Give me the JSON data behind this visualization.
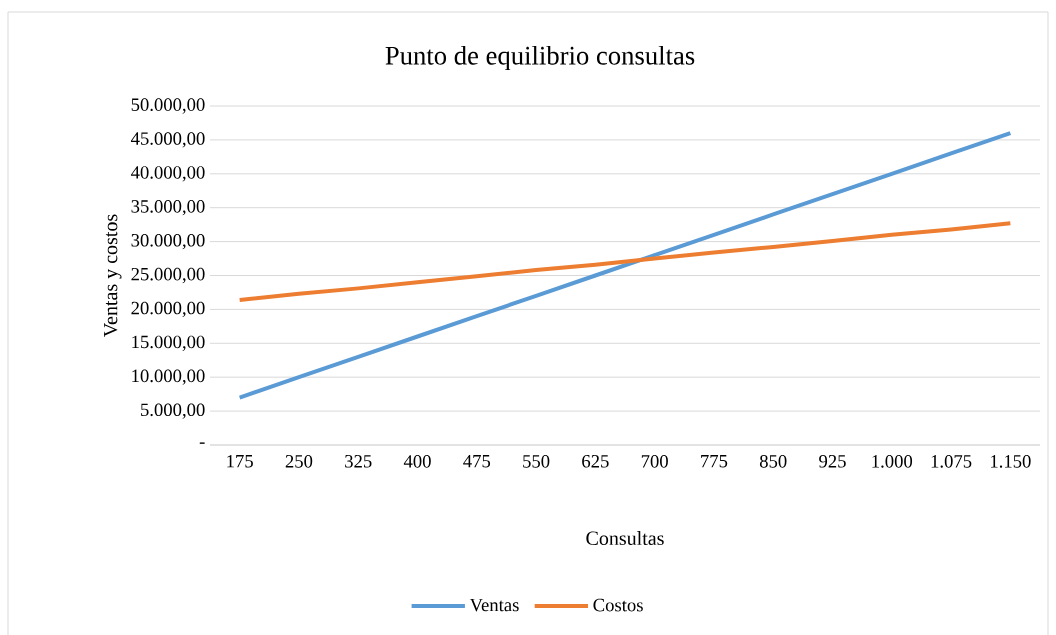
{
  "chart_data": {
    "type": "line",
    "title": "Punto de equilibrio consultas",
    "xlabel": "Consultas",
    "ylabel": "Ventas y costos",
    "categories": [
      "175",
      "250",
      "325",
      "400",
      "475",
      "550",
      "625",
      "700",
      "775",
      "850",
      "925",
      "1.000",
      "1.075",
      "1.150"
    ],
    "series": [
      {
        "name": "Ventas",
        "color": "#5b9bd5",
        "values": [
          7000,
          10000,
          13000,
          16000,
          19000,
          22000,
          25000,
          28000,
          31000,
          34000,
          37000,
          40000,
          43000,
          46000
        ]
      },
      {
        "name": "Costos",
        "color": "#ed7d31",
        "values": [
          21400,
          22300,
          23100,
          24000,
          24900,
          25800,
          26600,
          27500,
          28400,
          29200,
          30100,
          31000,
          31800,
          32700
        ]
      }
    ],
    "ylim": [
      0,
      50000
    ],
    "yticks": [
      {
        "value": 0,
        "label": "-"
      },
      {
        "value": 5000,
        "label": "5.000,00"
      },
      {
        "value": 10000,
        "label": "10.000,00"
      },
      {
        "value": 15000,
        "label": "15.000,00"
      },
      {
        "value": 20000,
        "label": "20.000,00"
      },
      {
        "value": 25000,
        "label": "25.000,00"
      },
      {
        "value": 30000,
        "label": "30.000,00"
      },
      {
        "value": 35000,
        "label": "35.000,00"
      },
      {
        "value": 40000,
        "label": "40.000,00"
      },
      {
        "value": 45000,
        "label": "45.000,00"
      },
      {
        "value": 50000,
        "label": "50.000,00"
      }
    ],
    "grid": "y",
    "legend": "bottom",
    "marker": "none",
    "line_style": "solid"
  }
}
